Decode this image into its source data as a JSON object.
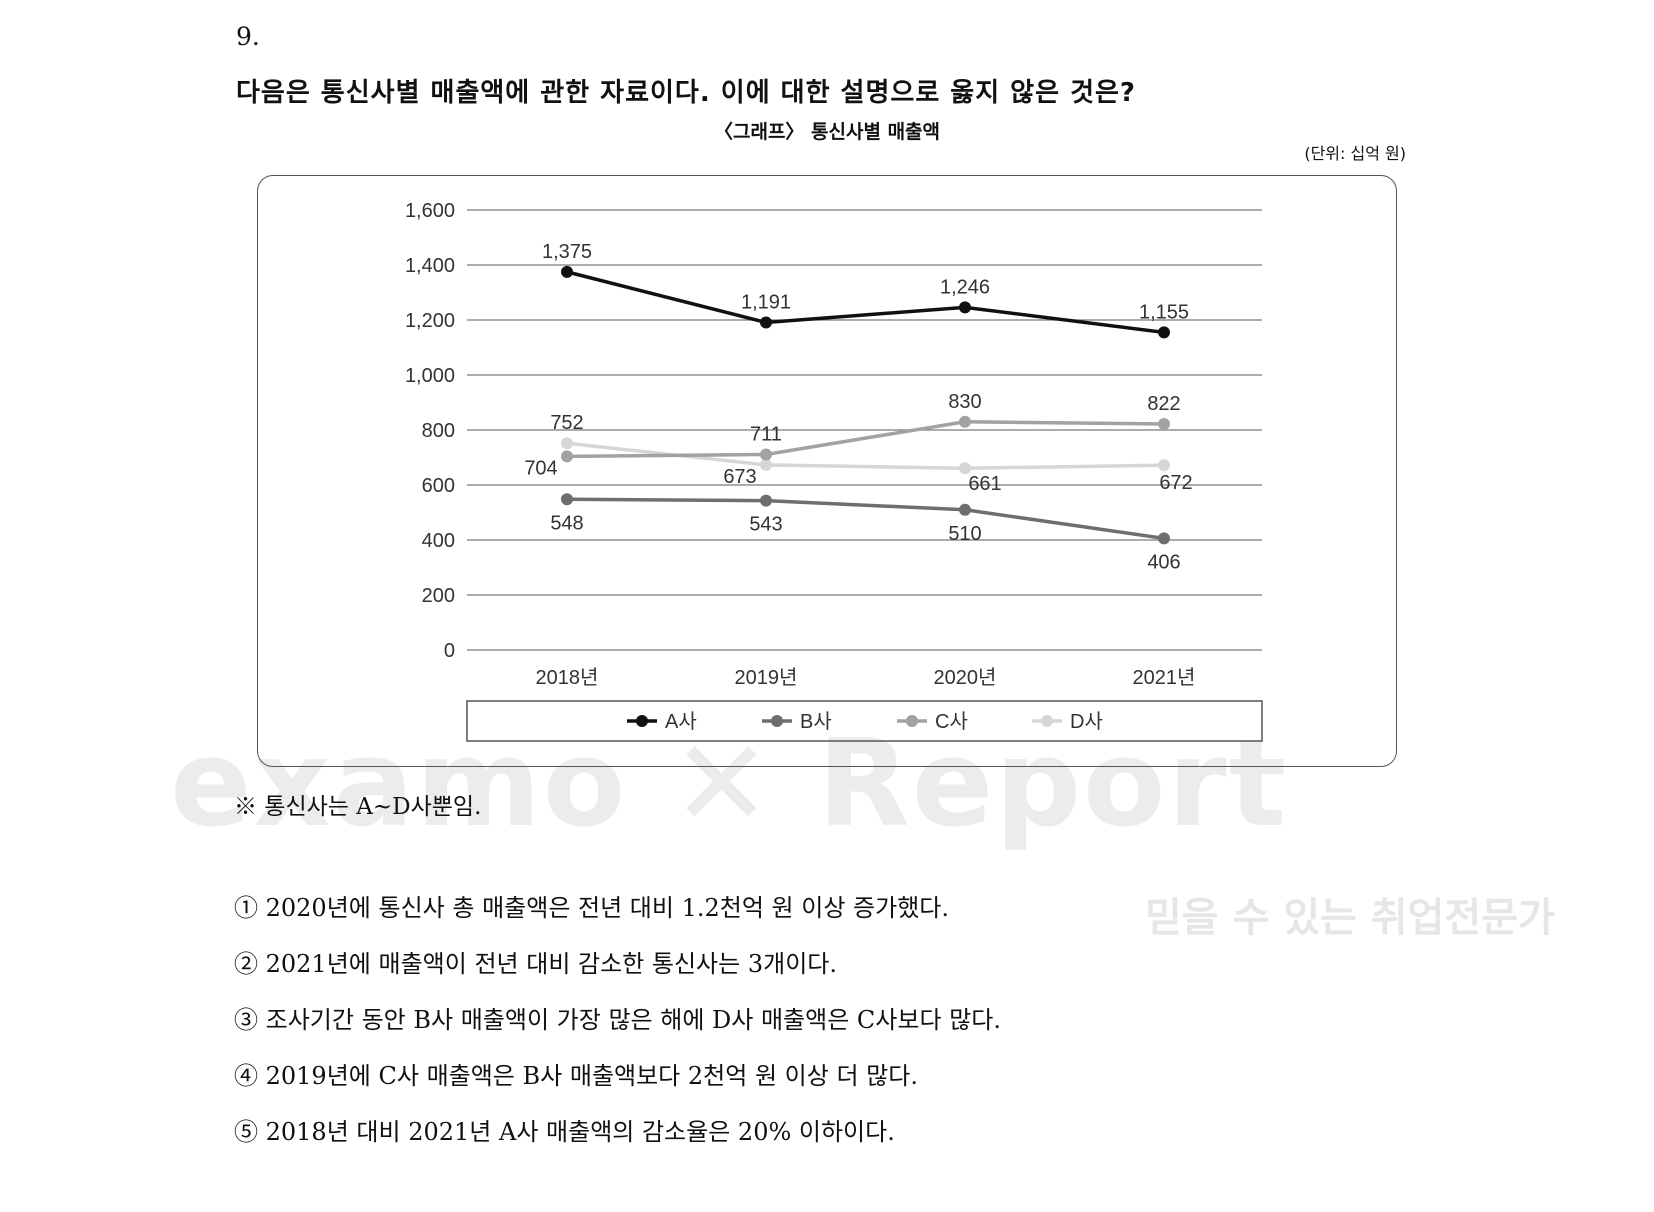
{
  "question": {
    "number": "9.",
    "text": "다음은 통신사별 매출액에 관한 자료이다. 이에 대한 설명으로 옳지 않은 것은?"
  },
  "watermark": {
    "brand": "examo ✕ Report",
    "slogan": "믿을 수 있는 취업전문가"
  },
  "chart_data": {
    "type": "line",
    "title": "〈그래프〉 통신사별 매출액",
    "unit": "(단위: 십억 원)",
    "categories": [
      "2018년",
      "2019년",
      "2020년",
      "2021년"
    ],
    "ylim": [
      0,
      1600
    ],
    "yticks": [
      "0",
      "200",
      "400",
      "600",
      "800",
      "1,000",
      "1,200",
      "1,400",
      "1,600"
    ],
    "grid": true,
    "legend_position": "bottom",
    "series": [
      {
        "name": "A사",
        "values": [
          1375,
          1191,
          1246,
          1155
        ],
        "labels": [
          "1,375",
          "1,191",
          "1,246",
          "1,155"
        ],
        "color": "#111111"
      },
      {
        "name": "B사",
        "values": [
          548,
          543,
          510,
          406
        ],
        "labels": [
          "548",
          "543",
          "510",
          "406"
        ],
        "color": "#6e6e6e"
      },
      {
        "name": "C사",
        "values": [
          704,
          711,
          830,
          822
        ],
        "labels": [
          "704",
          "711",
          "830",
          "822"
        ],
        "color": "#a2a2a2"
      },
      {
        "name": "D사",
        "values": [
          752,
          673,
          661,
          672
        ],
        "labels": [
          "752",
          "673",
          "661",
          "672"
        ],
        "color": "#d6d6d6"
      }
    ]
  },
  "note": "※ 통신사는 A~D사뿐임.",
  "options": [
    "① 2020년에 통신사 총 매출액은 전년 대비 1.2천억 원 이상 증가했다.",
    "② 2021년에 매출액이 전년 대비 감소한 통신사는 3개이다.",
    "③ 조사기간 동안 B사 매출액이 가장 많은 해에 D사 매출액은 C사보다 많다.",
    "④ 2019년에 C사 매출액은 B사 매출액보다 2천억 원 이상 더 많다.",
    "⑤ 2018년 대비 2021년 A사 매출액의 감소율은 20% 이하이다."
  ]
}
